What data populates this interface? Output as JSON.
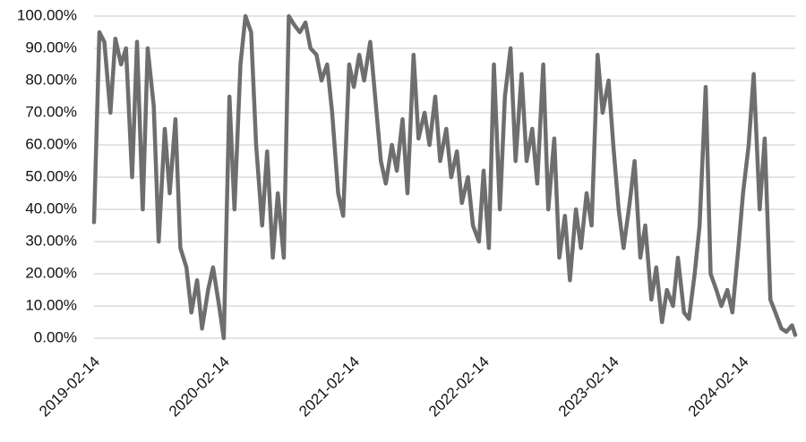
{
  "chart_data": {
    "type": "line",
    "color": "#6e6e6e",
    "grid": true,
    "xlim": [
      "2019-02-14",
      "2024-07-10"
    ],
    "xticks": [
      "2019-02-14",
      "2020-02-14",
      "2021-02-14",
      "2022-02-14",
      "2023-02-14",
      "2024-02-14"
    ],
    "ylim": [
      0,
      100
    ],
    "yticks": [
      {
        "value": 0,
        "label": "0.00%"
      },
      {
        "value": 10,
        "label": "10.00%"
      },
      {
        "value": 20,
        "label": "20.00%"
      },
      {
        "value": 30,
        "label": "30.00%"
      },
      {
        "value": 40,
        "label": "40.00%"
      },
      {
        "value": 50,
        "label": "50.00%"
      },
      {
        "value": 60,
        "label": "60.00%"
      },
      {
        "value": 70,
        "label": "70.00%"
      },
      {
        "value": 80,
        "label": "80.00%"
      },
      {
        "value": 90,
        "label": "90.00%"
      },
      {
        "value": 100,
        "label": "100.00%"
      }
    ],
    "x": [
      "2019-02-14",
      "2019-03-01",
      "2019-03-15",
      "2019-04-01",
      "2019-04-15",
      "2019-05-01",
      "2019-05-15",
      "2019-06-01",
      "2019-06-15",
      "2019-07-01",
      "2019-07-15",
      "2019-08-01",
      "2019-08-15",
      "2019-09-01",
      "2019-09-15",
      "2019-10-01",
      "2019-10-15",
      "2019-11-01",
      "2019-11-15",
      "2019-12-01",
      "2019-12-15",
      "2020-01-01",
      "2020-01-15",
      "2020-02-01",
      "2020-02-14",
      "2020-03-01",
      "2020-03-15",
      "2020-04-01",
      "2020-04-15",
      "2020-05-01",
      "2020-05-15",
      "2020-06-01",
      "2020-06-15",
      "2020-07-01",
      "2020-07-15",
      "2020-08-01",
      "2020-08-15",
      "2020-09-01",
      "2020-09-15",
      "2020-10-01",
      "2020-10-15",
      "2020-11-01",
      "2020-11-15",
      "2020-12-01",
      "2020-12-15",
      "2021-01-01",
      "2021-01-15",
      "2021-02-01",
      "2021-02-14",
      "2021-03-01",
      "2021-03-15",
      "2021-04-01",
      "2021-04-15",
      "2021-05-01",
      "2021-05-15",
      "2021-06-01",
      "2021-06-15",
      "2021-07-01",
      "2021-07-15",
      "2021-08-01",
      "2021-08-15",
      "2021-09-01",
      "2021-09-15",
      "2021-10-01",
      "2021-10-15",
      "2021-11-01",
      "2021-11-15",
      "2021-12-01",
      "2021-12-15",
      "2022-01-01",
      "2022-01-15",
      "2022-02-01",
      "2022-02-14",
      "2022-03-01",
      "2022-03-15",
      "2022-04-01",
      "2022-04-15",
      "2022-05-01",
      "2022-05-15",
      "2022-06-01",
      "2022-06-15",
      "2022-07-01",
      "2022-07-15",
      "2022-08-01",
      "2022-08-15",
      "2022-09-01",
      "2022-09-15",
      "2022-10-01",
      "2022-10-15",
      "2022-11-01",
      "2022-11-15",
      "2022-12-01",
      "2022-12-15",
      "2023-01-01",
      "2023-01-15",
      "2023-02-01",
      "2023-02-14",
      "2023-03-01",
      "2023-03-15",
      "2023-04-01",
      "2023-04-15",
      "2023-05-01",
      "2023-05-15",
      "2023-06-01",
      "2023-06-15",
      "2023-07-01",
      "2023-07-15",
      "2023-08-01",
      "2023-08-15",
      "2023-09-01",
      "2023-09-15",
      "2023-10-01",
      "2023-10-15",
      "2023-11-01",
      "2023-11-15",
      "2023-12-01",
      "2023-12-15",
      "2024-01-01",
      "2024-01-15",
      "2024-02-01",
      "2024-02-14",
      "2024-03-01",
      "2024-03-15",
      "2024-04-01",
      "2024-04-15",
      "2024-05-01",
      "2024-05-15",
      "2024-06-01",
      "2024-06-15",
      "2024-07-01",
      "2024-07-10"
    ],
    "values": [
      36,
      95,
      92,
      70,
      93,
      85,
      90,
      50,
      92,
      40,
      90,
      72,
      30,
      65,
      45,
      68,
      28,
      22,
      8,
      18,
      3,
      15,
      22,
      10,
      0,
      75,
      40,
      85,
      100,
      95,
      60,
      35,
      58,
      25,
      45,
      25,
      100,
      97,
      95,
      98,
      90,
      88,
      80,
      85,
      70,
      45,
      38,
      85,
      78,
      88,
      80,
      92,
      75,
      55,
      48,
      60,
      52,
      68,
      45,
      88,
      62,
      70,
      60,
      75,
      55,
      65,
      50,
      58,
      42,
      50,
      35,
      30,
      52,
      28,
      85,
      40,
      75,
      90,
      55,
      82,
      55,
      65,
      48,
      85,
      40,
      62,
      25,
      38,
      18,
      40,
      28,
      45,
      35,
      88,
      70,
      80,
      60,
      40,
      28,
      42,
      55,
      25,
      35,
      12,
      22,
      5,
      15,
      10,
      25,
      8,
      6,
      20,
      35,
      78,
      20,
      15,
      10,
      15,
      8,
      28,
      45,
      60,
      82,
      40,
      62,
      12,
      8,
      3,
      2,
      4,
      1
    ]
  }
}
